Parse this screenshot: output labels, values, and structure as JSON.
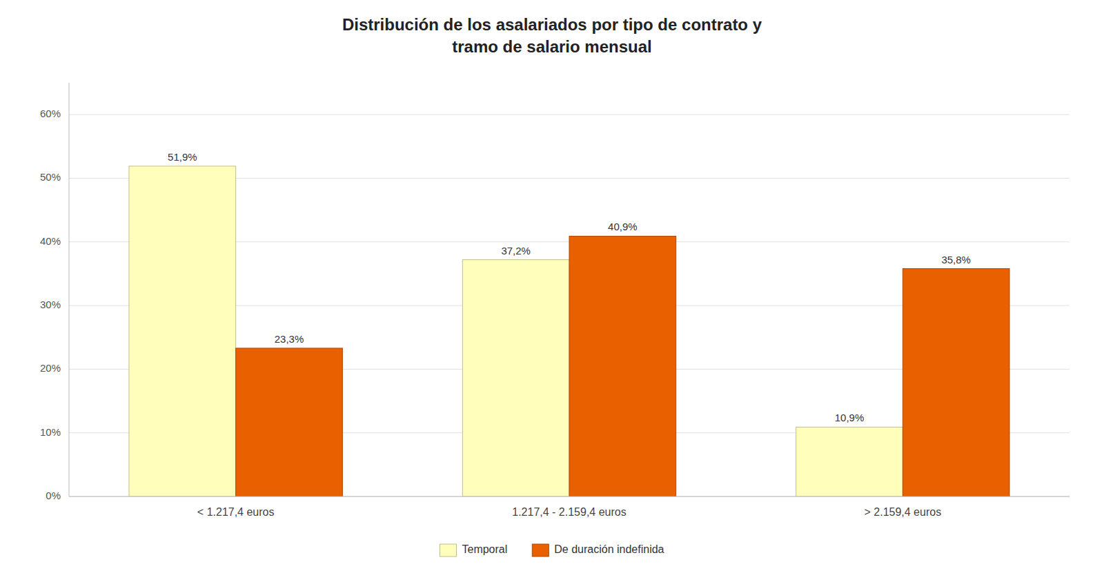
{
  "chart_data": {
    "type": "bar",
    "title": "Distribución de los asalariados por tipo de contrato y\ntramo de salario mensual",
    "categories": [
      "< 1.217,4 euros",
      "1.217,4 - 2.159,4 euros",
      "> 2.159,4 euros"
    ],
    "series": [
      {
        "name": "Temporal",
        "color": "#FFFFBB",
        "values": [
          51.9,
          37.2,
          10.9
        ],
        "value_labels": [
          "51,9%",
          "37,2%",
          "10,9%"
        ]
      },
      {
        "name": "De duración indefinida",
        "color": "#E86000",
        "values": [
          23.3,
          40.9,
          35.8
        ],
        "value_labels": [
          "23,3%",
          "40,9%",
          "35,8%"
        ]
      }
    ],
    "ylim": [
      0,
      65
    ],
    "yticks": [
      {
        "value": 0,
        "label": "0%"
      },
      {
        "value": 10,
        "label": "10%"
      },
      {
        "value": 20,
        "label": "20%"
      },
      {
        "value": 30,
        "label": "30%"
      },
      {
        "value": 40,
        "label": "40%"
      },
      {
        "value": 50,
        "label": "50%"
      },
      {
        "value": 60,
        "label": "60%"
      }
    ],
    "grid": true,
    "legend": "bottom",
    "data_labels": true
  }
}
